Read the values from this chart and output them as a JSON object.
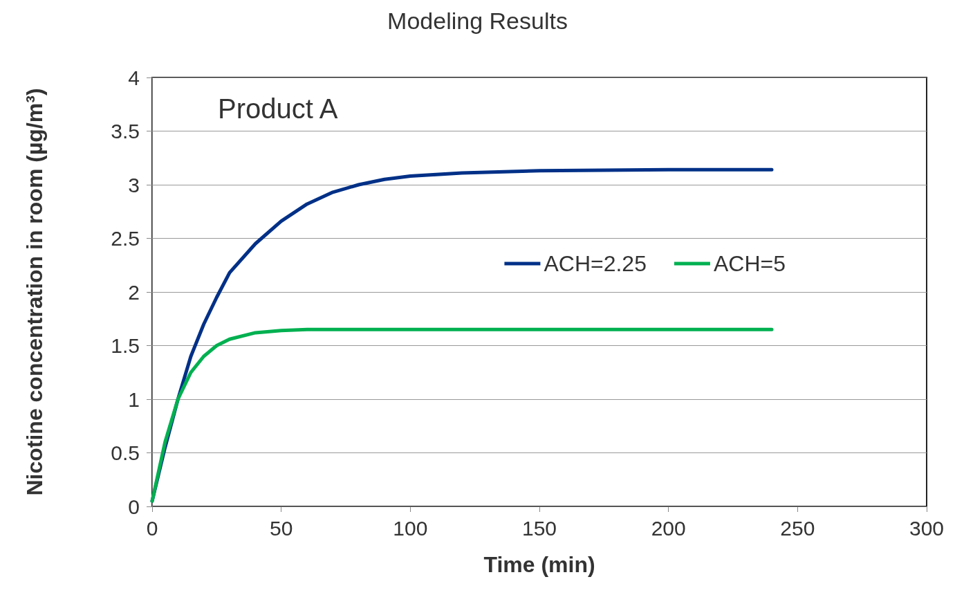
{
  "chart_data": {
    "type": "line",
    "title": "Modeling Results",
    "xlabel": "Time (min)",
    "ylabel": "Nicotine concentration in room (µg/m³)",
    "annotations": [
      "Product A"
    ],
    "x": [
      0,
      5,
      10,
      15,
      20,
      25,
      30,
      40,
      50,
      60,
      70,
      80,
      90,
      100,
      120,
      150,
      200,
      240
    ],
    "series": [
      {
        "name": "ACH=2.25",
        "color": "#003087",
        "values": [
          0.05,
          0.55,
          1.0,
          1.4,
          1.7,
          1.95,
          2.18,
          2.45,
          2.66,
          2.82,
          2.93,
          3.0,
          3.05,
          3.08,
          3.11,
          3.13,
          3.14,
          3.14
        ]
      },
      {
        "name": "ACH=5",
        "color": "#00b050",
        "values": [
          0.05,
          0.6,
          1.0,
          1.25,
          1.4,
          1.5,
          1.56,
          1.62,
          1.64,
          1.65,
          1.65,
          1.65,
          1.65,
          1.65,
          1.65,
          1.65,
          1.65,
          1.65
        ]
      }
    ],
    "xlim": [
      0,
      300
    ],
    "xticks": [
      0,
      50,
      100,
      150,
      200,
      250,
      300
    ],
    "ylim": [
      0,
      4
    ],
    "yticks": [
      0,
      0.5,
      1,
      1.5,
      2,
      2.5,
      3,
      3.5,
      4
    ],
    "grid": "y",
    "legend": "right",
    "marker": "none",
    "line_style": "solid"
  }
}
